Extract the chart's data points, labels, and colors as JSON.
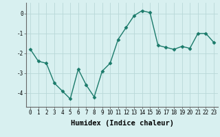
{
  "xlabel": "Humidex (Indice chaleur)",
  "x": [
    0,
    1,
    2,
    3,
    4,
    5,
    6,
    7,
    8,
    9,
    10,
    11,
    12,
    13,
    14,
    15,
    16,
    17,
    18,
    19,
    20,
    21,
    22,
    23
  ],
  "y": [
    -1.8,
    -2.4,
    -2.5,
    -3.5,
    -3.9,
    -4.3,
    -2.8,
    -3.6,
    -4.2,
    -2.9,
    -2.5,
    -1.3,
    -0.7,
    -0.1,
    0.15,
    0.05,
    -1.6,
    -1.7,
    -1.8,
    -1.65,
    -1.75,
    -1.0,
    -1.0,
    -1.45
  ],
  "line_color": "#1a7a6a",
  "marker": "D",
  "marker_size": 2.5,
  "linewidth": 1.0,
  "background_color": "#d8f0f0",
  "grid_color": "#b8d8d8",
  "ylim": [
    -4.7,
    0.55
  ],
  "xlim": [
    -0.5,
    23.5
  ],
  "yticks": [
    -4,
    -3,
    -2,
    -1,
    0
  ],
  "xticks": [
    0,
    1,
    2,
    3,
    4,
    5,
    6,
    7,
    8,
    9,
    10,
    11,
    12,
    13,
    14,
    15,
    16,
    17,
    18,
    19,
    20,
    21,
    22,
    23
  ],
  "xtick_labels": [
    "0",
    "1",
    "2",
    "3",
    "4",
    "5",
    "6",
    "7",
    "8",
    "9",
    "10",
    "11",
    "12",
    "13",
    "14",
    "15",
    "16",
    "17",
    "18",
    "19",
    "20",
    "21",
    "22",
    "23"
  ],
  "tick_fontsize": 5.5,
  "xlabel_fontsize": 7.5,
  "spine_color": "#666666"
}
